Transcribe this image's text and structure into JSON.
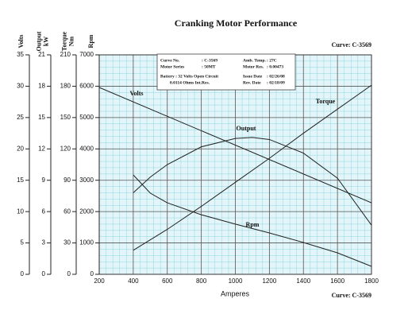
{
  "chart_data": {
    "type": "line",
    "title": "Cranking Motor Performance",
    "annotations": {
      "curve_top": "Curve: C-3569",
      "curve_bottom": "Curve: C-3569",
      "info": [
        [
          "Curve No.",
          ": C-3569",
          "Amb. Temp.",
          ": 27C"
        ],
        [
          "Motor Series",
          ": 50MT",
          "Motor Res.",
          ": 0.00473"
        ],
        [
          "Battery : 32 Volts Open Circuit",
          "",
          "Issue Date",
          ": 02/26/08"
        ],
        [
          "0.0114 Ohms Int.Res.",
          "",
          "Rev. Date",
          ": 02/18/09"
        ]
      ]
    },
    "x_label": "Amperes",
    "xlim": [
      200,
      1800
    ],
    "xticks": [
      200,
      400,
      600,
      800,
      1000,
      1200,
      1400,
      1600,
      1800
    ],
    "grid": true,
    "minor_divisions": 5,
    "y_axes": [
      {
        "label": [
          "Volts"
        ],
        "ylim": [
          0,
          35
        ],
        "yticks": [
          0,
          5,
          10,
          15,
          20,
          25,
          30,
          35
        ],
        "series": {
          "name": "Volts",
          "color": "#222222",
          "x": [
            200,
            1800
          ],
          "values": [
            29.8,
            11.4
          ]
        }
      },
      {
        "label": [
          "Output",
          "kW"
        ],
        "ylim": [
          0,
          21
        ],
        "yticks": [
          0,
          3,
          6,
          9,
          12,
          15,
          18,
          21
        ],
        "series": {
          "name": "Output",
          "color": "#222222",
          "x": [
            400,
            500,
            600,
            800,
            1000,
            1100,
            1200,
            1400,
            1600,
            1800
          ],
          "values": [
            7.8,
            9.3,
            10.5,
            12.2,
            13.0,
            13.1,
            12.9,
            11.6,
            9.2,
            4.7
          ]
        }
      },
      {
        "label": [
          "Torque",
          "Nm"
        ],
        "ylim": [
          0,
          210
        ],
        "yticks": [
          0,
          30,
          60,
          90,
          120,
          150,
          180,
          210
        ],
        "series": {
          "name": "Torque",
          "color": "#222222",
          "x": [
            400,
            600,
            800,
            1000,
            1200,
            1400,
            1600,
            1800
          ],
          "values": [
            23,
            43,
            65,
            88,
            111,
            135,
            158,
            181
          ]
        }
      },
      {
        "label": [
          "Rpm"
        ],
        "ylim": [
          0,
          7000
        ],
        "yticks": [
          0,
          1000,
          2000,
          3000,
          4000,
          5000,
          6000,
          7000
        ],
        "series": {
          "name": "Rpm",
          "color": "#222222",
          "x": [
            400,
            500,
            600,
            800,
            1000,
            1200,
            1400,
            1600,
            1800
          ],
          "values": [
            3170,
            2590,
            2280,
            1900,
            1600,
            1320,
            1015,
            685,
            254
          ]
        }
      }
    ]
  }
}
